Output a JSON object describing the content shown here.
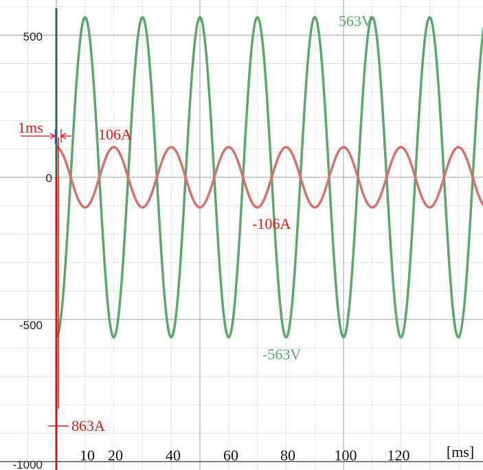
{
  "chart_data": {
    "type": "line",
    "title": "",
    "xlabel": "[ms]",
    "ylabel": "",
    "xlim": [
      -3,
      150
    ],
    "ylim": [
      -1000,
      600
    ],
    "x_ticks": [
      10,
      20,
      40,
      60,
      80,
      100,
      120
    ],
    "y_ticks": [
      500,
      0,
      -500,
      -1000
    ],
    "grid": true,
    "series": [
      {
        "id": "voltage",
        "color": "#5aa86a",
        "amplitude": 563,
        "frequency_hz": 50,
        "phase_deg": -90,
        "x_range": [
          0,
          150
        ]
      },
      {
        "id": "current",
        "color": "#d9706b",
        "amplitude": 106,
        "frequency_hz": 50,
        "phase_deg": 90,
        "x_range": [
          0,
          150
        ]
      }
    ],
    "inrush_spike": {
      "x": 0,
      "y_min": -863,
      "color": "#dd1111"
    },
    "annotations": {
      "v_max": "563V",
      "v_min": "-563V",
      "i_max": "106A",
      "i_min": "-106A",
      "spike": "863A",
      "dt": "1ms"
    },
    "colors": {
      "grid_minor": "#e4e4e4",
      "grid_major": "#9e9e9e",
      "axis_left": "#2f6b3a",
      "annotation_red": "#ee1111",
      "annotation_green": "#5aa86a"
    }
  }
}
